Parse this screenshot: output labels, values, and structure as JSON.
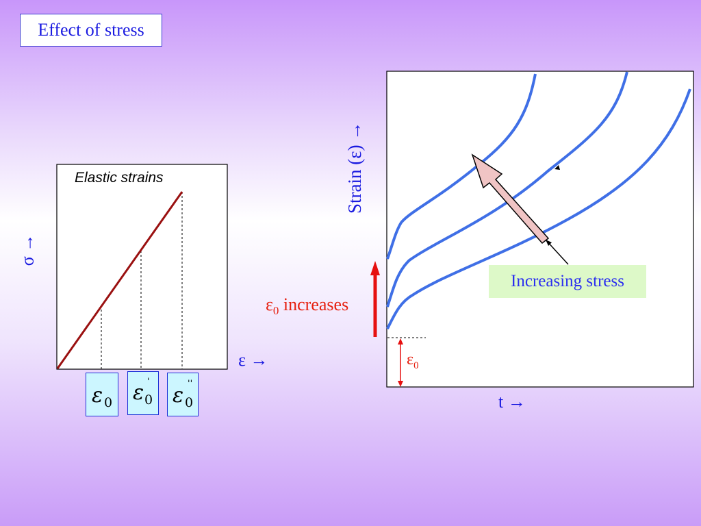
{
  "slide": {
    "title": "Effect of stress"
  },
  "left_plot": {
    "heading": "Elastic strains",
    "y_axis_label": "σ →",
    "x_axis_label": "ε  →",
    "strain_boxes": [
      {
        "symbol": "ε",
        "subscript": "0",
        "prime": ""
      },
      {
        "symbol": "ε",
        "subscript": "0",
        "prime": "'"
      },
      {
        "symbol": "ε",
        "subscript": "0",
        "prime": "''"
      }
    ]
  },
  "right_plot": {
    "y_axis_label": "Strain (ε)  →",
    "x_axis_label": "t  →",
    "increasing_stress_label": "Increasing stress",
    "eps0_increases_sym": "ε",
    "eps0_increases_sub": "0",
    "eps0_increases_text": " increases",
    "eps0_marker_sym": "ε",
    "eps0_marker_sub": "0"
  },
  "colors": {
    "curve_blue": "#3f6fe6",
    "elastic_line": "#9a1010",
    "red_arrow": "#e61010",
    "stress_arrow_fill": "#f0c4c4"
  }
}
